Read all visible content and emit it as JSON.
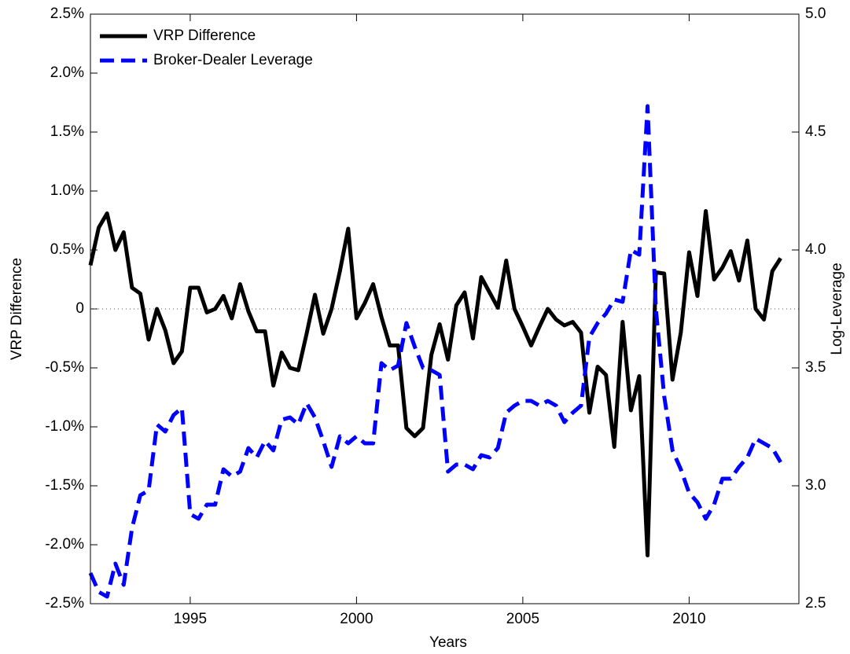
{
  "chart_data": {
    "type": "line",
    "x_label": "Years",
    "y_label": "VRP Difference",
    "y2_label": "Log-Leverage",
    "x": [
      1992,
      1992.25,
      1992.5,
      1992.75,
      1993,
      1993.25,
      1993.5,
      1993.75,
      1994,
      1994.25,
      1994.5,
      1994.75,
      1995,
      1995.25,
      1995.5,
      1995.75,
      1996,
      1996.25,
      1996.5,
      1996.75,
      1997,
      1997.25,
      1997.5,
      1997.75,
      1998,
      1998.25,
      1998.5,
      1998.75,
      1999,
      1999.25,
      1999.5,
      1999.75,
      2000,
      2000.25,
      2000.5,
      2000.75,
      2001,
      2001.25,
      2001.5,
      2001.75,
      2002,
      2002.25,
      2002.5,
      2002.75,
      2003,
      2003.25,
      2003.5,
      2003.75,
      2004,
      2004.25,
      2004.5,
      2004.75,
      2005,
      2005.25,
      2005.5,
      2005.75,
      2006,
      2006.25,
      2006.5,
      2006.75,
      2007,
      2007.25,
      2007.5,
      2007.75,
      2008,
      2008.25,
      2008.5,
      2008.75,
      2009,
      2009.25,
      2009.5,
      2009.75,
      2010,
      2010.25,
      2010.5,
      2010.75,
      2011,
      2011.25,
      2011.5,
      2011.75,
      2012,
      2012.25,
      2012.5,
      2012.75
    ],
    "series": [
      {
        "name": "VRP Difference",
        "color": "#000000",
        "axis": "y",
        "dashed": false,
        "values": [
          0.37,
          0.69,
          0.81,
          0.5,
          0.65,
          0.18,
          0.13,
          -0.26,
          0,
          -0.18,
          -0.46,
          -0.36,
          0.18,
          0.18,
          -0.03,
          0,
          0.11,
          -0.08,
          0.21,
          -0.02,
          -0.19,
          -0.19,
          -0.65,
          -0.37,
          -0.5,
          -0.52,
          -0.21,
          0.12,
          -0.21,
          0,
          0.32,
          0.68,
          -0.08,
          0.05,
          0.21,
          -0.07,
          -0.31,
          -0.31,
          -1.01,
          -1.08,
          -1.01,
          -0.39,
          -0.13,
          -0.43,
          0.03,
          0.14,
          -0.25,
          0.27,
          0.14,
          0.01,
          0.41,
          0,
          -0.15,
          -0.31,
          -0.15,
          0,
          -0.09,
          -0.14,
          -0.11,
          -0.2,
          -0.88,
          -0.49,
          -0.56,
          -1.17,
          -0.11,
          -0.86,
          -0.57,
          -2.09,
          0.31,
          0.3,
          -0.6,
          -0.2,
          0.48,
          0.11,
          0.83,
          0.25,
          0.35,
          0.49,
          0.24,
          0.58,
          0,
          -0.09,
          0.32,
          0.43
        ]
      },
      {
        "name": "Broker-Dealer Leverage",
        "color": "#0000ff",
        "axis": "y2",
        "dashed": true,
        "values": [
          2.63,
          2.55,
          2.53,
          2.67,
          2.58,
          2.82,
          2.96,
          2.98,
          3.26,
          3.23,
          3.3,
          3.33,
          2.88,
          2.86,
          2.92,
          2.92,
          3.07,
          3.04,
          3.06,
          3.16,
          3.12,
          3.19,
          3.15,
          3.28,
          3.29,
          3.26,
          3.35,
          3.29,
          3.19,
          3.08,
          3.21,
          3.18,
          3.21,
          3.18,
          3.18,
          3.52,
          3.49,
          3.51,
          3.69,
          3.59,
          3.5,
          3.49,
          3.47,
          3.06,
          3.09,
          3.09,
          3.07,
          3.13,
          3.12,
          3.16,
          3.31,
          3.34,
          3.36,
          3.36,
          3.34,
          3.36,
          3.34,
          3.27,
          3.31,
          3.34,
          3.63,
          3.69,
          3.73,
          3.79,
          3.78,
          4.0,
          3.98,
          4.61,
          3.75,
          3.38,
          3.15,
          3.07,
          2.97,
          2.93,
          2.86,
          2.92,
          3.03,
          3.03,
          3.08,
          3.12,
          3.2,
          3.18,
          3.16,
          3.1
        ]
      }
    ],
    "xlim": [
      1992,
      2013.3
    ],
    "xticks": [
      1995,
      2000,
      2005,
      2010
    ],
    "ylim": [
      -2.5,
      2.5
    ],
    "yticks": [
      {
        "value": -2.5,
        "label": "-2.5%"
      },
      {
        "value": -2,
        "label": "-2.0%"
      },
      {
        "value": -1.5,
        "label": "-1.5%"
      },
      {
        "value": -1,
        "label": "-1.0%"
      },
      {
        "value": -0.5,
        "label": "-0.5%"
      },
      0,
      {
        "value": 0.5,
        "label": "0.5%"
      },
      {
        "value": 1,
        "label": "1.0%"
      },
      {
        "value": 1.5,
        "label": "1.5%"
      },
      {
        "value": 2,
        "label": "2.0%"
      },
      {
        "value": 2.5,
        "label": "2.5%"
      }
    ],
    "y2lim": [
      2.5,
      5
    ],
    "y2ticks": [
      {
        "value": 2.5,
        "label": "2.5"
      },
      {
        "value": 3,
        "label": "3.0"
      },
      {
        "value": 3.5,
        "label": "3.5"
      },
      {
        "value": 4,
        "label": "4.0"
      },
      {
        "value": 4.5,
        "label": "4.5"
      },
      {
        "value": 5,
        "label": "5.0"
      }
    ],
    "legend": "upper-left",
    "zero_line": true
  }
}
